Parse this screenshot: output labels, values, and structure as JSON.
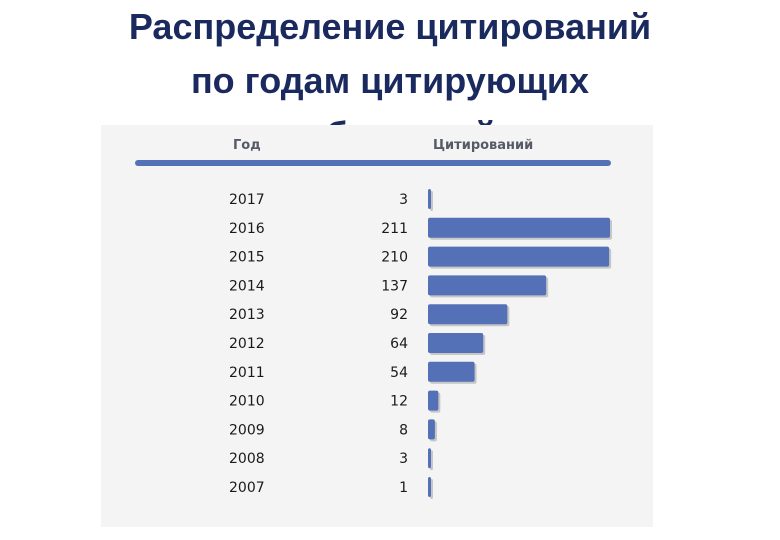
{
  "title_lines": [
    "Распределение цитирований",
    "по годам цитирующих",
    "публикаций"
  ],
  "headers": {
    "year": "Год",
    "count": "Цитирований"
  },
  "colors": {
    "title": "#1b2a5e",
    "bar": "#5470b6",
    "bar_shadow": "#a7a7a7",
    "panel": "#f4f4f4"
  },
  "chart_data": {
    "type": "bar",
    "orientation": "horizontal",
    "title": "Распределение цитирований по годам цитирующих публикаций",
    "xlabel": "Цитирований",
    "ylabel": "Год",
    "categories": [
      "2017",
      "2016",
      "2015",
      "2014",
      "2013",
      "2012",
      "2011",
      "2010",
      "2009",
      "2008",
      "2007"
    ],
    "values": [
      3,
      211,
      210,
      137,
      92,
      64,
      54,
      12,
      8,
      3,
      1
    ],
    "xlim": [
      0,
      211
    ],
    "grid": false,
    "legend": "none"
  }
}
